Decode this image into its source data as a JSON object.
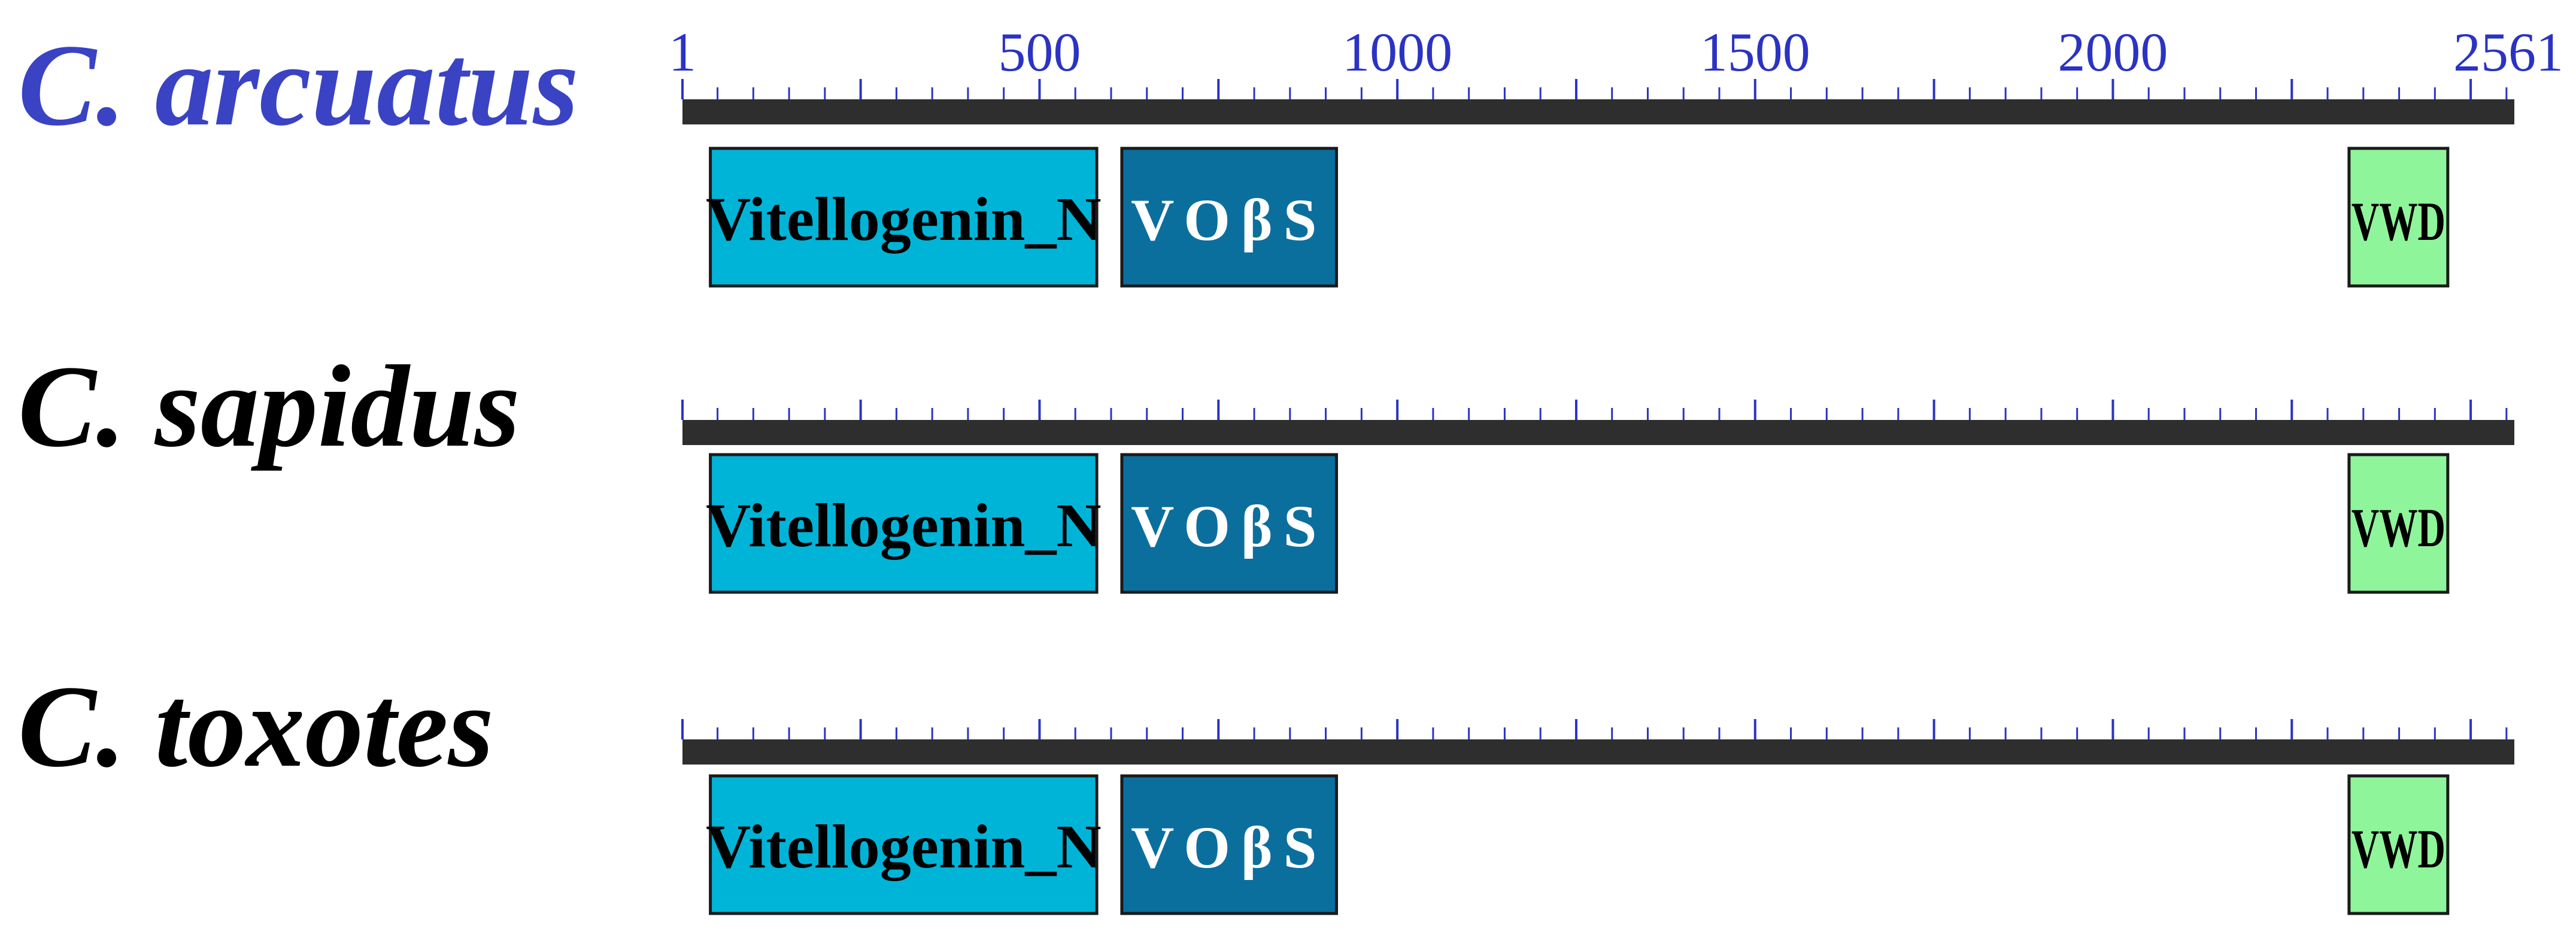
{
  "colors": {
    "accent_species": "#3a43c4",
    "species_default": "#000000",
    "ruler_ticks": "#2b33c2",
    "backbone": "#2e2e2e",
    "vitellogenin_n": "#00b4d8",
    "vobs": "#0b6f9e",
    "vwd": "#8ff59a"
  },
  "scale": {
    "min": 1,
    "max": 2561,
    "tick_labels": [
      {
        "value": 1,
        "label": "1"
      },
      {
        "value": 500,
        "label": "500"
      },
      {
        "value": 1000,
        "label": "1000"
      },
      {
        "value": 1500,
        "label": "1500"
      },
      {
        "value": 2000,
        "label": "2000"
      },
      {
        "value": 2561,
        "label": "2561"
      }
    ],
    "minor_tick_step": 50,
    "major_tick_step": 250
  },
  "proteins": [
    {
      "species": "C. arcuatus",
      "highlighted": true,
      "length": 2561,
      "domains": [
        {
          "name": "Vitellogenin_N",
          "start": 40,
          "end": 580,
          "color_key": "vitellogenin_n"
        },
        {
          "name": "VOβS",
          "start": 615,
          "end": 915,
          "color_key": "vobs"
        },
        {
          "name": "VWD",
          "start": 2330,
          "end": 2468,
          "color_key": "vwd"
        }
      ]
    },
    {
      "species": "C. sapidus",
      "highlighted": false,
      "length": 2561,
      "domains": [
        {
          "name": "Vitellogenin_N",
          "start": 40,
          "end": 580,
          "color_key": "vitellogenin_n"
        },
        {
          "name": "VOβS",
          "start": 615,
          "end": 915,
          "color_key": "vobs"
        },
        {
          "name": "VWD",
          "start": 2330,
          "end": 2468,
          "color_key": "vwd"
        }
      ]
    },
    {
      "species": "C. toxotes",
      "highlighted": false,
      "length": 2561,
      "domains": [
        {
          "name": "Vitellogenin_N",
          "start": 40,
          "end": 580,
          "color_key": "vitellogenin_n"
        },
        {
          "name": "VOβS",
          "start": 615,
          "end": 915,
          "color_key": "vobs"
        },
        {
          "name": "VWD",
          "start": 2330,
          "end": 2468,
          "color_key": "vwd"
        }
      ]
    }
  ]
}
